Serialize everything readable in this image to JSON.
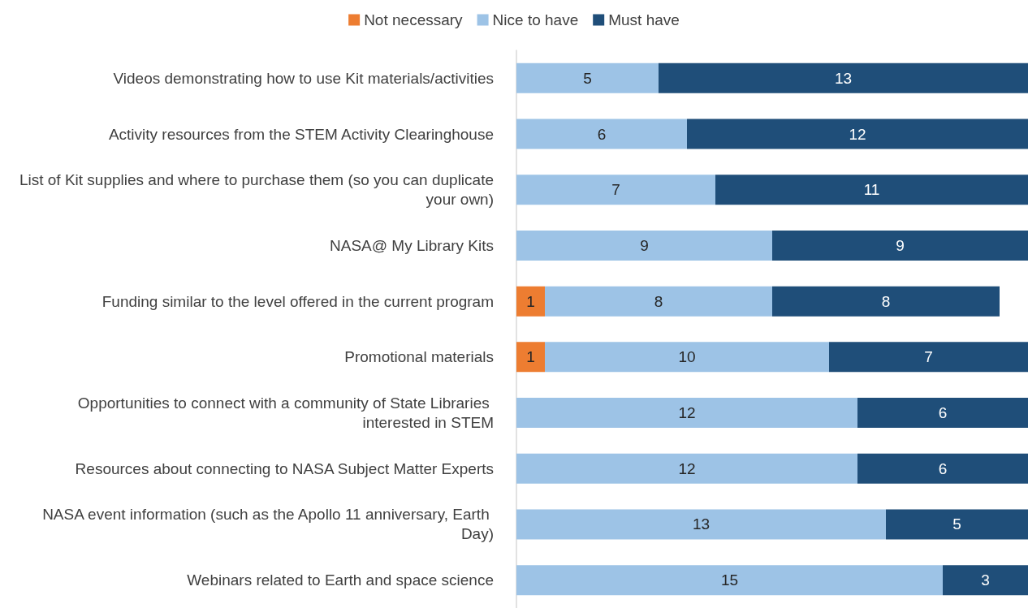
{
  "chart_data": {
    "type": "bar",
    "orientation": "horizontal",
    "stacked": true,
    "data_labels": true,
    "legend": "top",
    "categories": [
      "Videos demonstrating how to use Kit materials/activities",
      "Activity resources from the STEM Activity Clearinghouse",
      "List of Kit supplies and where to purchase them (so you can duplicate your own)",
      "NASA@ My Library Kits",
      "Funding similar to the level offered in the current program",
      "Promotional materials",
      "Opportunities to connect with a community of State Libraries interested in STEM",
      "Resources about connecting to NASA Subject Matter Experts",
      "NASA event information (such as the Apollo 11 anniversary, Earth Day)",
      "Webinars related to Earth and space science"
    ],
    "series": [
      {
        "name": "Not necessary",
        "color": "#ed7d31",
        "values": [
          null,
          null,
          null,
          null,
          1,
          1,
          null,
          null,
          null,
          null
        ]
      },
      {
        "name": "Nice to have",
        "color": "#9dc3e6",
        "values": [
          5,
          6,
          7,
          9,
          8,
          10,
          12,
          12,
          13,
          15
        ]
      },
      {
        "name": "Must have",
        "color": "#1f4e79",
        "values": [
          13,
          12,
          11,
          9,
          8,
          7,
          6,
          6,
          5,
          3
        ]
      }
    ]
  }
}
